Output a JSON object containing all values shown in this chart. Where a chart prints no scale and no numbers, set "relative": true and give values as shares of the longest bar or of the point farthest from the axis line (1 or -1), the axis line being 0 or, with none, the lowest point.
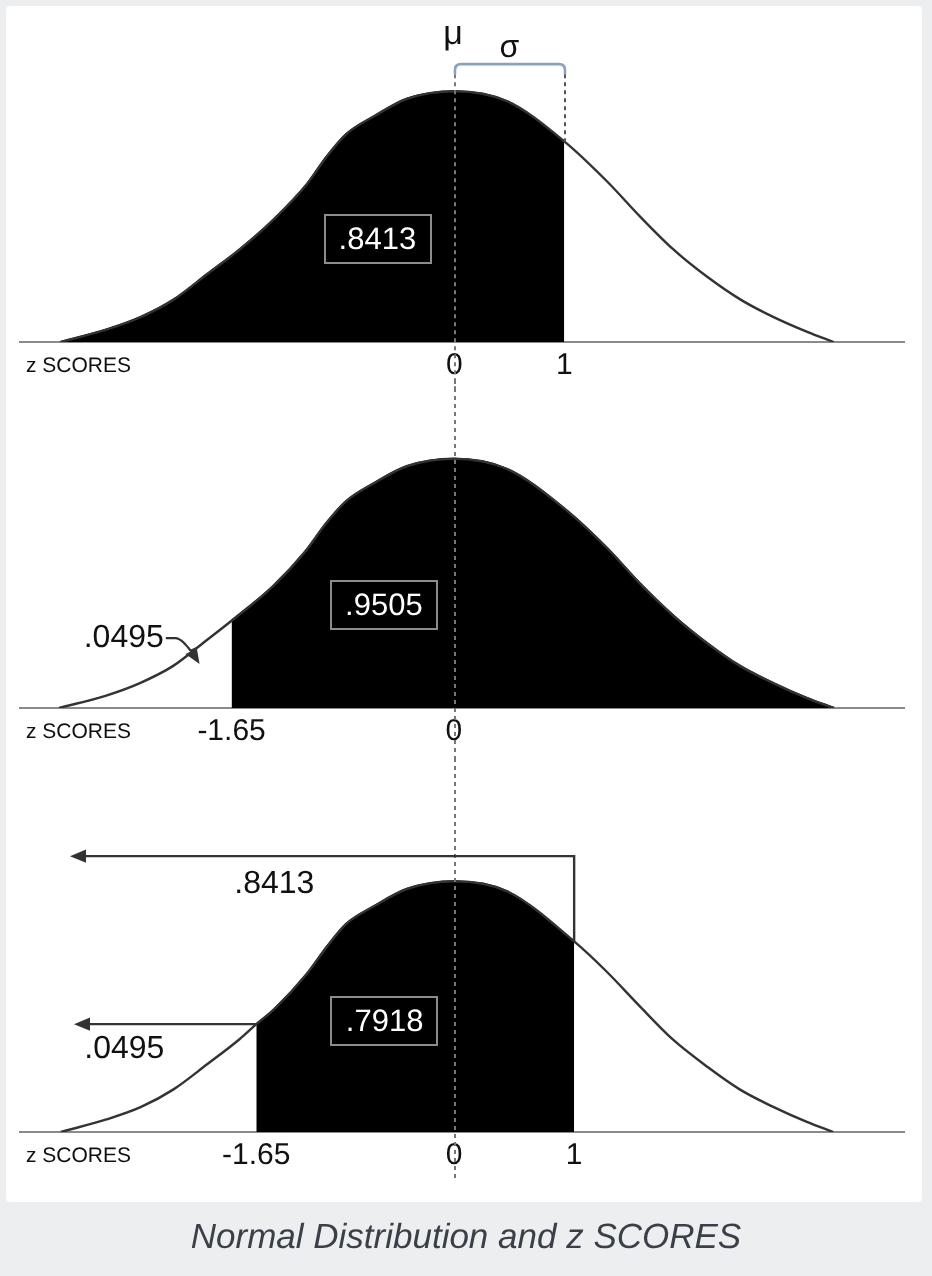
{
  "chart_data": [
    {
      "type": "line",
      "relative": true,
      "xlabel": "z SCORES",
      "xlim": [
        -3.95,
        4.09
      ],
      "xticks": [
        0,
        1
      ],
      "series": [
        {
          "type": "line",
          "color": "#333333",
          "x": [
            -3.58,
            -3.16,
            -2.85,
            -2.55,
            -2.25,
            -1.95,
            -1.64,
            -1.34,
            -1.16,
            -0.98,
            -0.73,
            -0.43,
            0,
            0.48,
            1,
            1.39,
            1.69,
            1.99,
            2.3,
            2.6,
            2.9,
            3.21,
            3.45
          ],
          "values": [
            0,
            0.05,
            0.1,
            0.17,
            0.27,
            0.37,
            0.49,
            0.63,
            0.74,
            0.83,
            0.9,
            0.97,
            1,
            0.96,
            0.8,
            0.64,
            0.5,
            0.37,
            0.26,
            0.17,
            0.1,
            0.04,
            0
          ]
        },
        {
          "type": "area",
          "color": "#000000",
          "x": [
            -3.58,
            -3.16,
            -2.85,
            -2.55,
            -2.25,
            -1.95,
            -1.64,
            -1.34,
            -1.16,
            -0.98,
            -0.73,
            -0.43,
            0,
            0.48,
            1
          ],
          "values": [
            0,
            0.05,
            0.1,
            0.17,
            0.27,
            0.37,
            0.49,
            0.63,
            0.74,
            0.83,
            0.9,
            0.97,
            1,
            0.96,
            0.8
          ]
        }
      ],
      "ref_lines": [
        {
          "axis": "x",
          "value": 0,
          "label": "μ",
          "line_style": "dotted",
          "color": "#777777"
        }
      ],
      "annotations": [
        ".8413",
        "σ"
      ]
    },
    {
      "type": "line",
      "relative": true,
      "xlabel": "z SCORES",
      "xlim": [
        -3.22,
        3.34
      ],
      "xticks": [
        -1.65,
        0
      ],
      "series": [
        {
          "type": "line",
          "color": "#333333",
          "x": [
            -2.93,
            -2.58,
            -2.33,
            -2.08,
            -1.84,
            -1.65,
            -1.34,
            -1.1,
            -0.95,
            -0.8,
            -0.6,
            -0.35,
            0,
            0.39,
            0.82,
            1.14,
            1.38,
            1.63,
            1.88,
            2.12,
            2.37,
            2.62,
            2.82
          ],
          "values": [
            0,
            0.05,
            0.1,
            0.17,
            0.27,
            0.35,
            0.49,
            0.63,
            0.74,
            0.83,
            0.9,
            0.97,
            1,
            0.96,
            0.8,
            0.64,
            0.5,
            0.37,
            0.26,
            0.17,
            0.1,
            0.04,
            0
          ]
        },
        {
          "type": "area",
          "color": "#000000",
          "x": [
            -1.65,
            -1.34,
            -1.1,
            -0.95,
            -0.8,
            -0.6,
            -0.35,
            0,
            0.39,
            0.82,
            1.14,
            1.38,
            1.63,
            1.88,
            2.12,
            2.37,
            2.62,
            2.82
          ],
          "values": [
            0.35,
            0.49,
            0.63,
            0.74,
            0.83,
            0.9,
            0.97,
            1,
            0.96,
            0.8,
            0.64,
            0.5,
            0.37,
            0.26,
            0.17,
            0.1,
            0.04,
            0
          ]
        }
      ],
      "ref_lines": [
        {
          "axis": "x",
          "value": 0,
          "line_style": "dotted",
          "color": "#777777"
        }
      ],
      "annotations": [
        ".9505",
        ".0495"
      ]
    },
    {
      "type": "line",
      "relative": true,
      "xlabel": "z SCORES",
      "xlim": [
        -3.62,
        3.75
      ],
      "xticks": [
        -1.65,
        0,
        1
      ],
      "series": [
        {
          "type": "line",
          "color": "#333333",
          "x": [
            -3.28,
            -2.9,
            -2.61,
            -2.34,
            -2.06,
            -1.79,
            -1.65,
            -1.5,
            -1.23,
            -1.06,
            -0.9,
            -0.67,
            -0.39,
            0,
            0.44,
            1,
            1.27,
            1.55,
            1.82,
            2.11,
            2.38,
            2.66,
            2.94,
            3.16
          ],
          "values": [
            0,
            0.05,
            0.1,
            0.17,
            0.27,
            0.37,
            0.43,
            0.49,
            0.63,
            0.74,
            0.83,
            0.9,
            0.97,
            1,
            0.96,
            0.76,
            0.64,
            0.5,
            0.37,
            0.26,
            0.17,
            0.1,
            0.04,
            0
          ]
        },
        {
          "type": "area",
          "color": "#000000",
          "x": [
            -1.65,
            -1.5,
            -1.23,
            -1.06,
            -0.9,
            -0.67,
            -0.39,
            0,
            0.44,
            1
          ],
          "values": [
            0.43,
            0.49,
            0.63,
            0.74,
            0.83,
            0.9,
            0.97,
            1,
            0.96,
            0.76
          ]
        }
      ],
      "ref_lines": [
        {
          "axis": "x",
          "value": 0,
          "line_style": "dotted",
          "color": "#777777"
        }
      ],
      "annotations": [
        ".7918",
        ".8413",
        ".0495",
        "Normal Distribution and z SCORES"
      ]
    }
  ]
}
